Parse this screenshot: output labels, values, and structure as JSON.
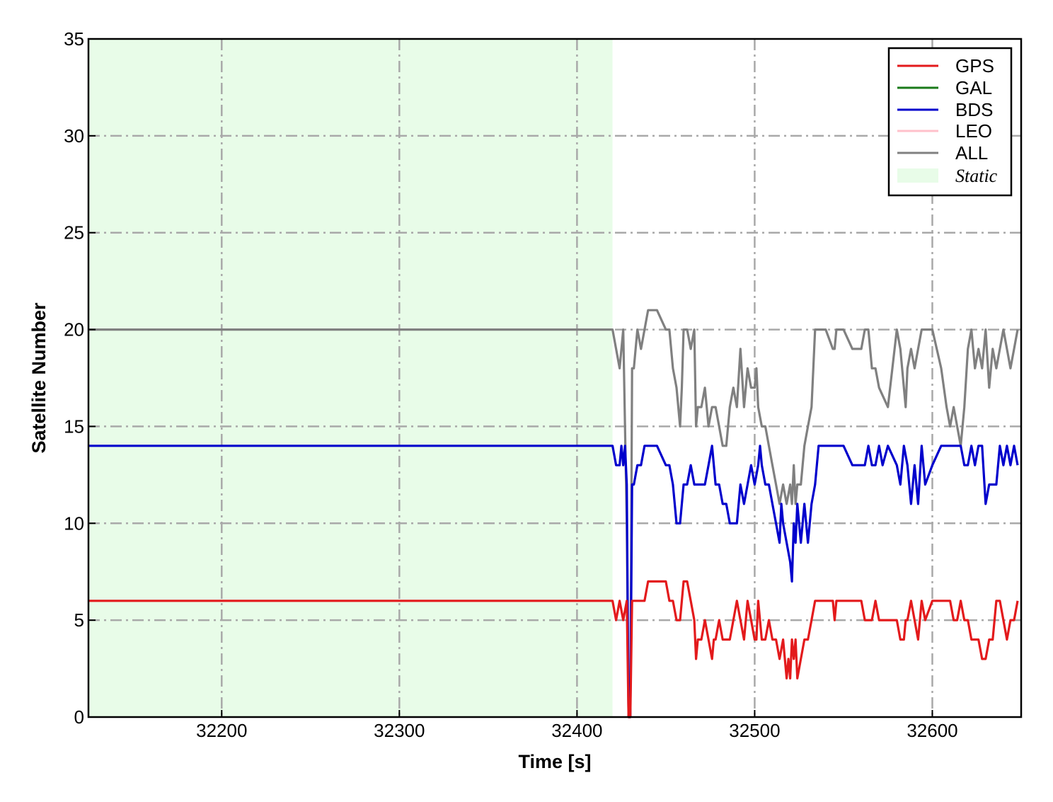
{
  "chart_data": {
    "type": "line",
    "xlabel": "Time [s]",
    "ylabel": "Satellite Number",
    "xlim": [
      32125,
      32650
    ],
    "ylim": [
      0,
      35
    ],
    "x_ticks": [
      32200,
      32300,
      32400,
      32500,
      32600
    ],
    "y_ticks": [
      0,
      5,
      10,
      15,
      20,
      25,
      30,
      35
    ],
    "grid": true,
    "legend_position": "top-right",
    "shaded_region": {
      "name": "Static",
      "x": [
        32125,
        32420
      ],
      "color": "#e8fce8"
    },
    "series": [
      {
        "name": "GPS",
        "color": "#e31a1c",
        "x": [
          32125,
          32420,
          32422,
          32424,
          32426,
          32428,
          32429,
          32430,
          32431,
          32432,
          32433,
          32434,
          32435,
          32436,
          32438,
          32440,
          32445,
          32450,
          32452,
          32454,
          32456,
          32458,
          32460,
          32462,
          32464,
          32466,
          32467,
          32468,
          32470,
          32472,
          32474,
          32476,
          32477,
          32478,
          32480,
          32482,
          32484,
          32486,
          32488,
          32490,
          32492,
          32494,
          32496,
          32498,
          32500,
          32501,
          32502,
          32504,
          32506,
          32508,
          32510,
          32512,
          32514,
          32516,
          32518,
          32519,
          32520,
          32521,
          32522,
          32523,
          32524,
          32526,
          32528,
          32530,
          32532,
          32534,
          32536,
          32540,
          32544,
          32545,
          32546,
          32548,
          32550,
          32555,
          32560,
          32562,
          32564,
          32566,
          32568,
          32570,
          32575,
          32580,
          32582,
          32584,
          32585,
          32586,
          32588,
          32590,
          32592,
          32594,
          32596,
          32600,
          32605,
          32610,
          32612,
          32614,
          32616,
          32618,
          32620,
          32622,
          32624,
          32626,
          32628,
          32630,
          32632,
          32634,
          32636,
          32638,
          32640,
          32642,
          32644,
          32646,
          32648
        ],
        "values": [
          6,
          6,
          5,
          6,
          5,
          6,
          0,
          0,
          6,
          6,
          6,
          6,
          6,
          6,
          6,
          7,
          7,
          7,
          6,
          6,
          5,
          5,
          7,
          7,
          6,
          5,
          3,
          4,
          4,
          5,
          4,
          3,
          4,
          4,
          5,
          4,
          4,
          4,
          5,
          6,
          5,
          4,
          6,
          5,
          4,
          4,
          6,
          4,
          4,
          5,
          4,
          4,
          3,
          4,
          2,
          3,
          2,
          4,
          3,
          4,
          2,
          3,
          4,
          4,
          5,
          6,
          6,
          6,
          6,
          5,
          6,
          6,
          6,
          6,
          6,
          5,
          5,
          5,
          6,
          5,
          5,
          5,
          4,
          4,
          5,
          5,
          6,
          5,
          4,
          6,
          5,
          6,
          6,
          6,
          5,
          5,
          6,
          5,
          5,
          4,
          4,
          4,
          3,
          3,
          4,
          4,
          6,
          6,
          5,
          4,
          5,
          5,
          6
        ]
      },
      {
        "name": "GAL",
        "color": "#1a7a1a",
        "x": [],
        "values": []
      },
      {
        "name": "BDS",
        "color": "#0000cc",
        "x": [
          32125,
          32420,
          32422,
          32424,
          32425,
          32426,
          32427,
          32428,
          32429,
          32430,
          32431,
          32432,
          32434,
          32436,
          32438,
          32440,
          32445,
          32450,
          32452,
          32454,
          32456,
          32458,
          32459,
          32460,
          32462,
          32464,
          32466,
          32468,
          32470,
          32472,
          32474,
          32476,
          32478,
          32480,
          32482,
          32484,
          32486,
          32488,
          32490,
          32492,
          32494,
          32496,
          32498,
          32500,
          32502,
          32503,
          32504,
          32506,
          32508,
          32510,
          32512,
          32514,
          32515,
          32516,
          32518,
          32520,
          32521,
          32522,
          32523,
          32524,
          32526,
          32528,
          32530,
          32532,
          32534,
          32536,
          32540,
          32545,
          32550,
          32555,
          32560,
          32562,
          32564,
          32566,
          32568,
          32570,
          32572,
          32575,
          32580,
          32582,
          32584,
          32586,
          32588,
          32590,
          32592,
          32594,
          32596,
          32600,
          32605,
          32610,
          32612,
          32614,
          32616,
          32618,
          32620,
          32622,
          32624,
          32626,
          32628,
          32630,
          32632,
          32634,
          32636,
          32638,
          32640,
          32642,
          32644,
          32646,
          32648
        ],
        "values": [
          14,
          14,
          13,
          13,
          14,
          13,
          14,
          12,
          0,
          0,
          12,
          12,
          13,
          13,
          14,
          14,
          14,
          13,
          13,
          12,
          10,
          10,
          11,
          12,
          12,
          13,
          12,
          12,
          12,
          12,
          13,
          14,
          12,
          12,
          11,
          11,
          10,
          10,
          10,
          12,
          11,
          12,
          13,
          12,
          13,
          14,
          13,
          12,
          12,
          11,
          10,
          9,
          11,
          10,
          9,
          8,
          7,
          10,
          9,
          11,
          9,
          11,
          9,
          11,
          12,
          14,
          14,
          14,
          14,
          13,
          13,
          13,
          14,
          13,
          13,
          14,
          13,
          14,
          13,
          12,
          14,
          13,
          11,
          13,
          11,
          14,
          12,
          13,
          14,
          14,
          14,
          14,
          14,
          13,
          13,
          14,
          13,
          14,
          14,
          11,
          12,
          12,
          12,
          14,
          13,
          14,
          13,
          14,
          13
        ]
      },
      {
        "name": "LEO",
        "color": "#ffc0cb",
        "x": [],
        "values": []
      },
      {
        "name": "ALL",
        "color": "#808080",
        "x": [
          32125,
          32420,
          32422,
          32424,
          32426,
          32428,
          32429,
          32430,
          32431,
          32432,
          32434,
          32436,
          32438,
          32440,
          32445,
          32450,
          32452,
          32454,
          32456,
          32458,
          32459,
          32460,
          32462,
          32464,
          32466,
          32467,
          32468,
          32470,
          32472,
          32474,
          32476,
          32478,
          32480,
          32482,
          32484,
          32486,
          32488,
          32490,
          32492,
          32494,
          32496,
          32498,
          32500,
          32501,
          32502,
          32504,
          32506,
          32508,
          32510,
          32512,
          32514,
          32516,
          32518,
          32520,
          32521,
          32522,
          32523,
          32524,
          32526,
          32528,
          32530,
          32532,
          32534,
          32536,
          32540,
          32544,
          32545,
          32546,
          32548,
          32550,
          32555,
          32560,
          32562,
          32564,
          32566,
          32568,
          32570,
          32575,
          32580,
          32582,
          32584,
          32585,
          32586,
          32588,
          32590,
          32592,
          32594,
          32596,
          32600,
          32605,
          32608,
          32610,
          32612,
          32614,
          32616,
          32618,
          32620,
          32622,
          32624,
          32626,
          32628,
          32630,
          32632,
          32634,
          32636,
          32638,
          32640,
          32642,
          32644,
          32646,
          32648
        ],
        "values": [
          20,
          20,
          19,
          18,
          20,
          10,
          0,
          0,
          18,
          18,
          20,
          19,
          20,
          21,
          21,
          20,
          20,
          18,
          17,
          15,
          17,
          20,
          20,
          19,
          20,
          15,
          16,
          16,
          17,
          15,
          16,
          16,
          15,
          14,
          14,
          16,
          17,
          16,
          19,
          16,
          18,
          17,
          17,
          18,
          16,
          15,
          15,
          14,
          13,
          12,
          11,
          12,
          11,
          12,
          11,
          13,
          11,
          12,
          12,
          14,
          15,
          16,
          20,
          20,
          20,
          19,
          19,
          20,
          20,
          20,
          19,
          19,
          20,
          20,
          18,
          18,
          17,
          16,
          20,
          19,
          17,
          16,
          18,
          19,
          18,
          19,
          20,
          20,
          20,
          18,
          16,
          15,
          16,
          15,
          14,
          16,
          19,
          20,
          18,
          19,
          18,
          20,
          17,
          19,
          18,
          19,
          20,
          19,
          18,
          19,
          20
        ]
      }
    ]
  }
}
